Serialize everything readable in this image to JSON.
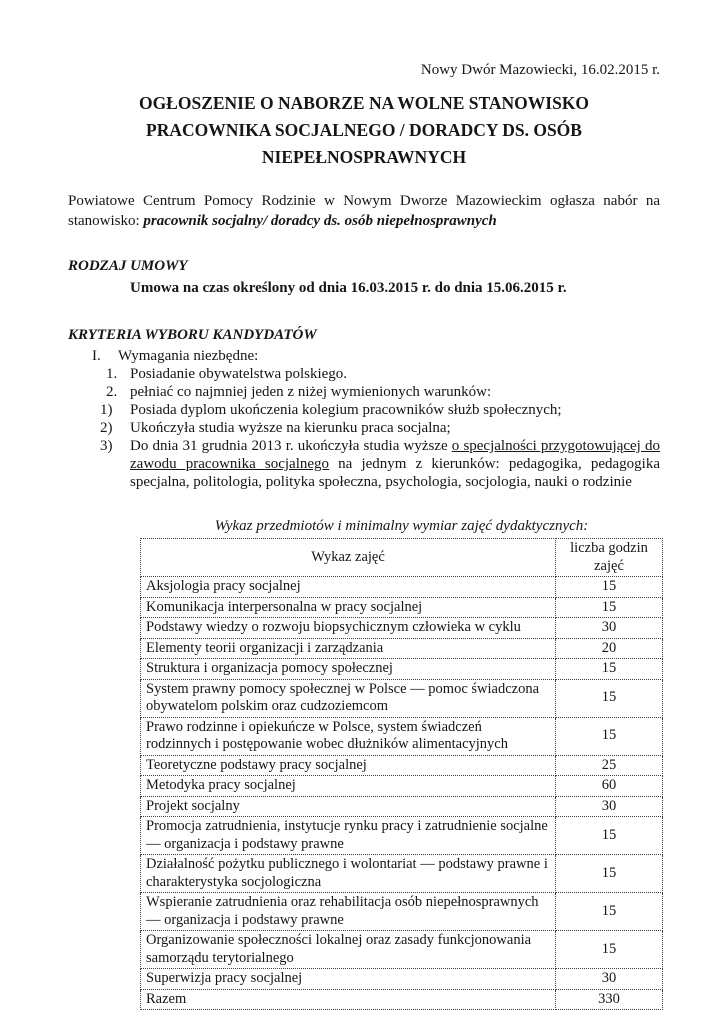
{
  "document": {
    "date_line": "Nowy Dwór Mazowiecki, 16.02.2015 r.",
    "title_lines": [
      "OGŁOSZENIE O NABORZE NA WOLNE STANOWISKO",
      "PRACOWNIKA SOCJALNEGO / DORADCY DS. OSÓB",
      "NIEPEŁNOSPRAWNYCH"
    ],
    "intro": {
      "normal": "Powiatowe Centrum Pomocy Rodzinie  w Nowym Dworze Mazowieckim ogłasza nabór na stanowisko: ",
      "emphasis": "pracownik socjalny/ doradcy ds. osób niepełnosprawnych"
    },
    "contract": {
      "heading": "RODZAJ UMOWY",
      "text": "Umowa na czas określony od dnia 16.03.2015 r. do dnia 15.06.2015 r."
    },
    "criteria": {
      "heading": "KRYTERIA WYBORU KANDYDATÓW",
      "roman": {
        "marker": "I.",
        "text": "Wymagania niezbędne:"
      },
      "item1": {
        "marker": "1.",
        "text": "Posiadanie obywatelstwa polskiego."
      },
      "item2": {
        "marker": "2.",
        "text": "pełniać co najmniej jeden z niżej wymienionych warunków:"
      },
      "sub1": {
        "marker": "1)",
        "text": "Posiada dyplom ukończenia kolegium pracowników służb społecznych;"
      },
      "sub2": {
        "marker": "2)",
        "text": "Ukończyła studia wyższe na kierunku praca socjalna;"
      },
      "sub3": {
        "marker": "3)",
        "before": "Do dnia 31 grudnia 2013 r. ukończyła studia wyższe ",
        "underlined": "o specjalności przygotowującej do zawodu pracownika socjalnego",
        "after": " na jednym z kierunków: pedagogika, pedagogika specjalna, politologia, polityka społeczna, psychologia, socjologia, nauki o rodzinie"
      }
    },
    "table": {
      "caption": "Wykaz przedmiotów i minimalny wymiar zajęć dydaktycznych:",
      "col1_header": "Wykaz zajęć",
      "col2_header": "liczba godzin zajęć",
      "rows": [
        {
          "subject": "Aksjologia pracy socjalnej",
          "hours": "15"
        },
        {
          "subject": "Komunikacja interpersonalna w pracy socjalnej",
          "hours": "15"
        },
        {
          "subject": "Podstawy wiedzy o rozwoju biopsychicznym człowieka w cyklu",
          "hours": "30"
        },
        {
          "subject": "Elementy teorii organizacji i zarządzania",
          "hours": "20"
        },
        {
          "subject": "Struktura i organizacja pomocy społecznej",
          "hours": "15"
        },
        {
          "subject": "System prawny pomocy społecznej w Polsce — pomoc świadczona obywatelom polskim oraz cudzoziemcom",
          "hours": "15"
        },
        {
          "subject": "Prawo rodzinne i opiekuńcze w Polsce, system świadczeń rodzinnych i postępowanie wobec dłużników alimentacyjnych",
          "hours": "15"
        },
        {
          "subject": "Teoretyczne podstawy pracy socjalnej",
          "hours": "25"
        },
        {
          "subject": "Metodyka pracy socjalnej",
          "hours": "60"
        },
        {
          "subject": "Projekt socjalny",
          "hours": "30"
        },
        {
          "subject": "Promocja zatrudnienia, instytucje rynku pracy i zatrudnienie socjalne — organizacja i podstawy prawne",
          "hours": "15"
        },
        {
          "subject": "Działalność pożytku publicznego i wolontariat — podstawy prawne i charakterystyka socjologiczna",
          "hours": "15"
        },
        {
          "subject": "Wspieranie zatrudnienia oraz rehabilitacja osób niepełnosprawnych — organizacja i podstawy prawne",
          "hours": "15"
        },
        {
          "subject": "Organizowanie społeczności lokalnej oraz zasady funkcjonowania samorządu terytorialnego",
          "hours": "15"
        },
        {
          "subject": "Superwizja pracy socjalnej",
          "hours": "30"
        },
        {
          "subject": "Razem",
          "hours": "330"
        }
      ]
    }
  }
}
